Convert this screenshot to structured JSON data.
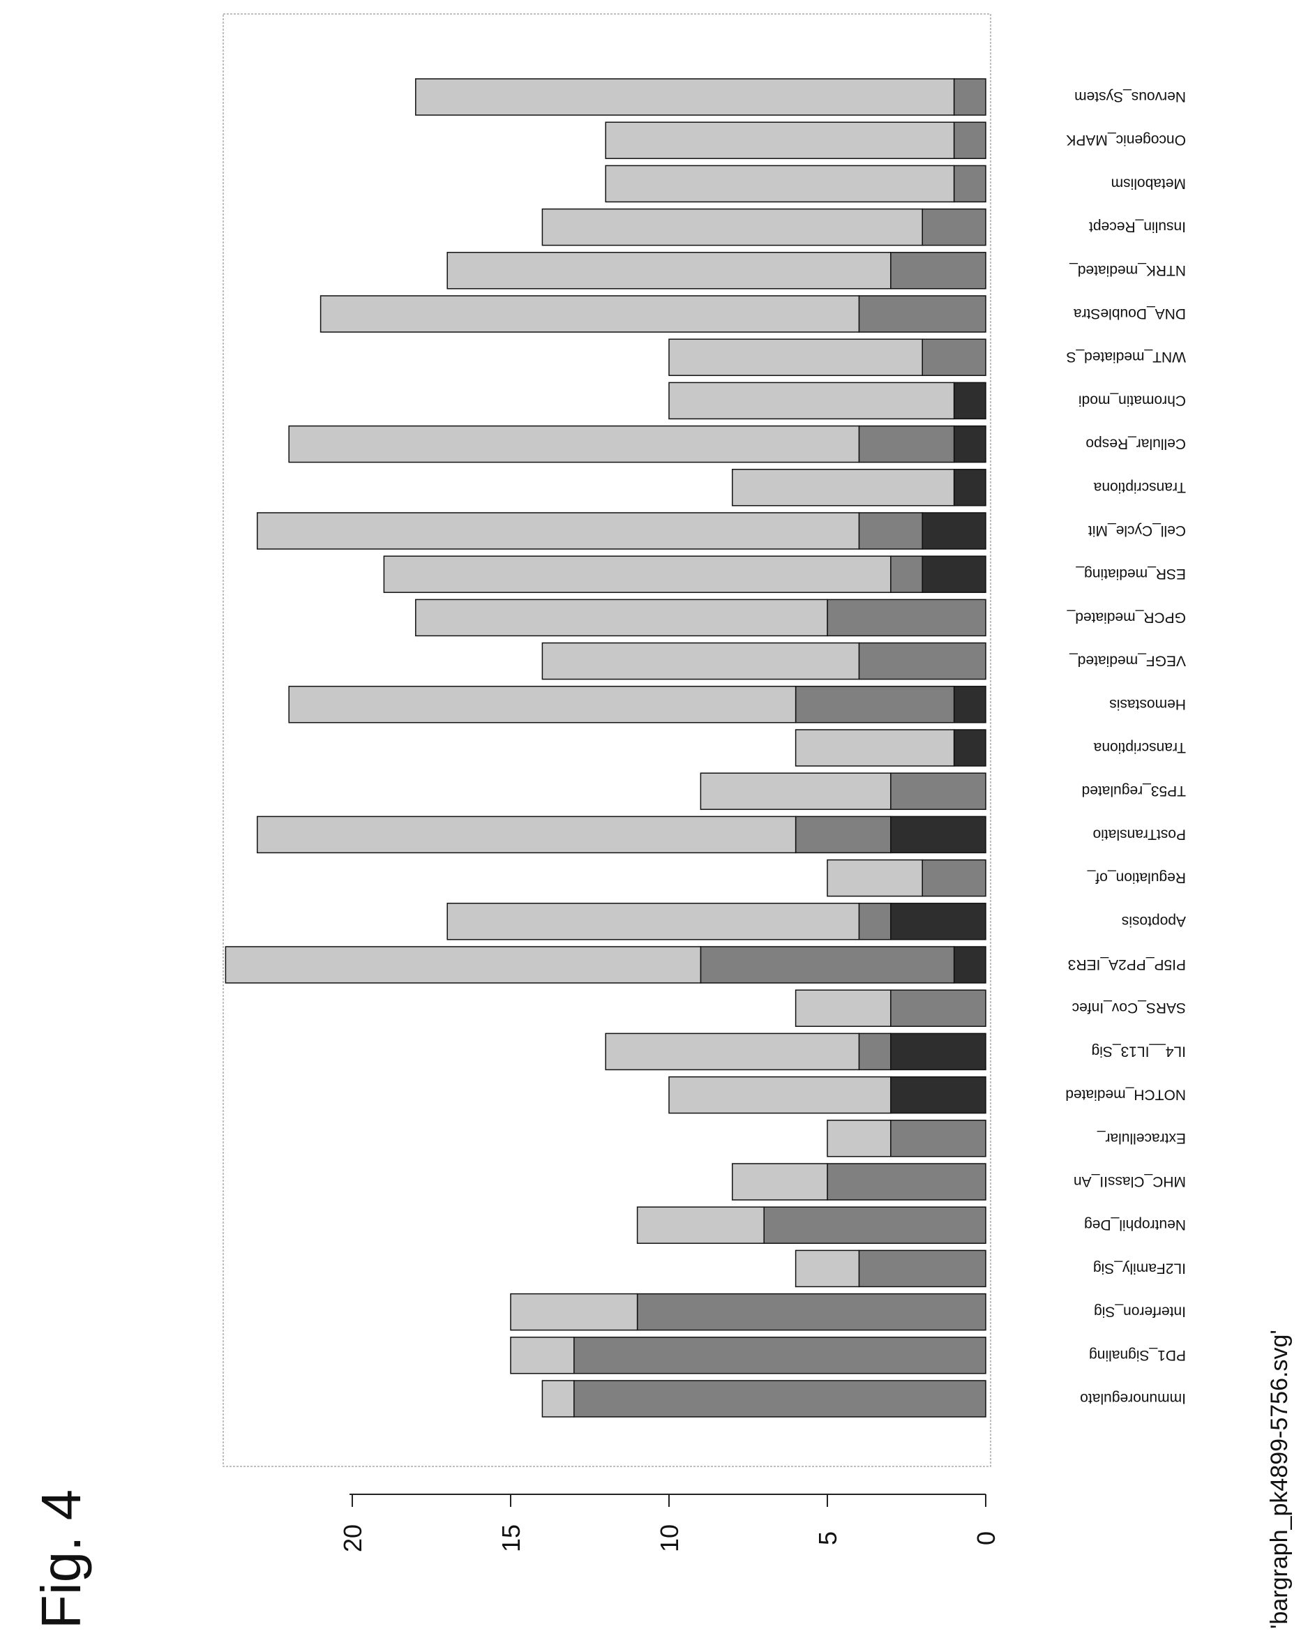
{
  "figure_label": "Fig. 4",
  "file_label": "'bargraph_pk4899-5756.svg'",
  "colors": {
    "dark": "#2e2e2e",
    "mid": "#808080",
    "light": "#c8c8c8",
    "frame": "#aaaaaa",
    "axis": "#222222"
  },
  "chart_data": {
    "type": "bar",
    "orientation": "rotated-90",
    "stacked": true,
    "title": "",
    "xlabel": "",
    "ylabel": "",
    "ylim": [
      0,
      24
    ],
    "yticks": [
      "0",
      "5",
      "10",
      "15",
      "20"
    ],
    "grid": false,
    "legend": "none",
    "categories": [
      "Immunoregulato",
      "PD1_Signaling",
      "Interferon_Sig",
      "IL2Family_Sig",
      "Neutrophil_Deg",
      "MHC_ClassII_An",
      "Extracellular_",
      "NOTCH_mediated",
      "IL4__IL13_Sig",
      "SARS_Cov_Infec",
      "PI5P_PP2A_IER3",
      "Apoptosis",
      "Regulation_of_",
      "PostTranslatio",
      "TP53_regulated",
      "Transcriptiona",
      "Hemostasis",
      "VEGF_mediated_",
      "GPCR_mediated_",
      "ESR_mediating_",
      "Cell_Cycle_Mit",
      "Transcriptiona",
      "Cellular_Respo",
      "Chromatin_modi",
      "WNT_mediated_S",
      "DNA_DoubleStra",
      "NTRK_mediated_",
      "Insulin_Recept",
      "Metabolism",
      "Oncogenic_MAPK",
      "Nervous_System"
    ],
    "series": [
      {
        "values": [
          0,
          0,
          0,
          0,
          0,
          0,
          0,
          3,
          3,
          0,
          1,
          3,
          0,
          3,
          0,
          1,
          1,
          0,
          0,
          2,
          2,
          1,
          1,
          1,
          0,
          0,
          0,
          0,
          0,
          0,
          0
        ]
      },
      {
        "values": [
          13,
          13,
          11,
          4,
          7,
          5,
          3,
          0,
          1,
          3,
          8,
          1,
          2,
          3,
          3,
          0,
          5,
          4,
          5,
          1,
          2,
          0,
          3,
          0,
          2,
          4,
          3,
          2,
          1,
          1,
          1
        ]
      },
      {
        "values": [
          1,
          2,
          4,
          2,
          4,
          3,
          2,
          7,
          8,
          3,
          15,
          13,
          3,
          17,
          6,
          5,
          16,
          10,
          13,
          16,
          19,
          7,
          18,
          9,
          8,
          17,
          14,
          12,
          11,
          11,
          17
        ]
      }
    ]
  }
}
